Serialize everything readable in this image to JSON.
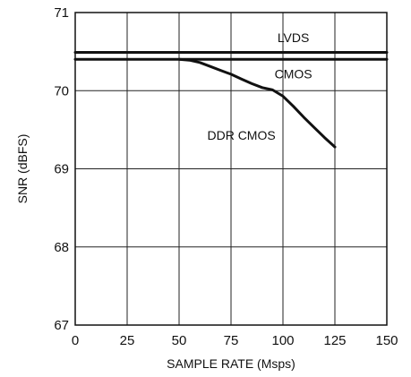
{
  "chart_data": {
    "type": "line",
    "title": "",
    "xlabel": "SAMPLE RATE (Msps)",
    "ylabel": "SNR (dBFS)",
    "xlim": [
      0,
      150
    ],
    "ylim": [
      67,
      71
    ],
    "xticks": [
      0,
      25,
      50,
      75,
      100,
      125,
      150
    ],
    "yticks": [
      67,
      68,
      69,
      70,
      71
    ],
    "grid": true,
    "legend": "none",
    "series": [
      {
        "name": "LVDS",
        "x": [
          0,
          150
        ],
        "y": [
          70.49,
          70.49
        ]
      },
      {
        "name": "CMOS",
        "x": [
          0,
          150
        ],
        "y": [
          70.4,
          70.4
        ]
      },
      {
        "name": "DDR CMOS",
        "x": [
          50,
          55,
          60,
          65,
          70,
          75,
          80,
          85,
          90,
          95,
          100,
          105,
          110,
          115,
          120,
          125
        ],
        "y": [
          70.4,
          70.39,
          70.36,
          70.31,
          70.26,
          70.21,
          70.15,
          70.09,
          70.04,
          70.01,
          69.93,
          69.8,
          69.66,
          69.53,
          69.4,
          69.28
        ]
      }
    ]
  }
}
